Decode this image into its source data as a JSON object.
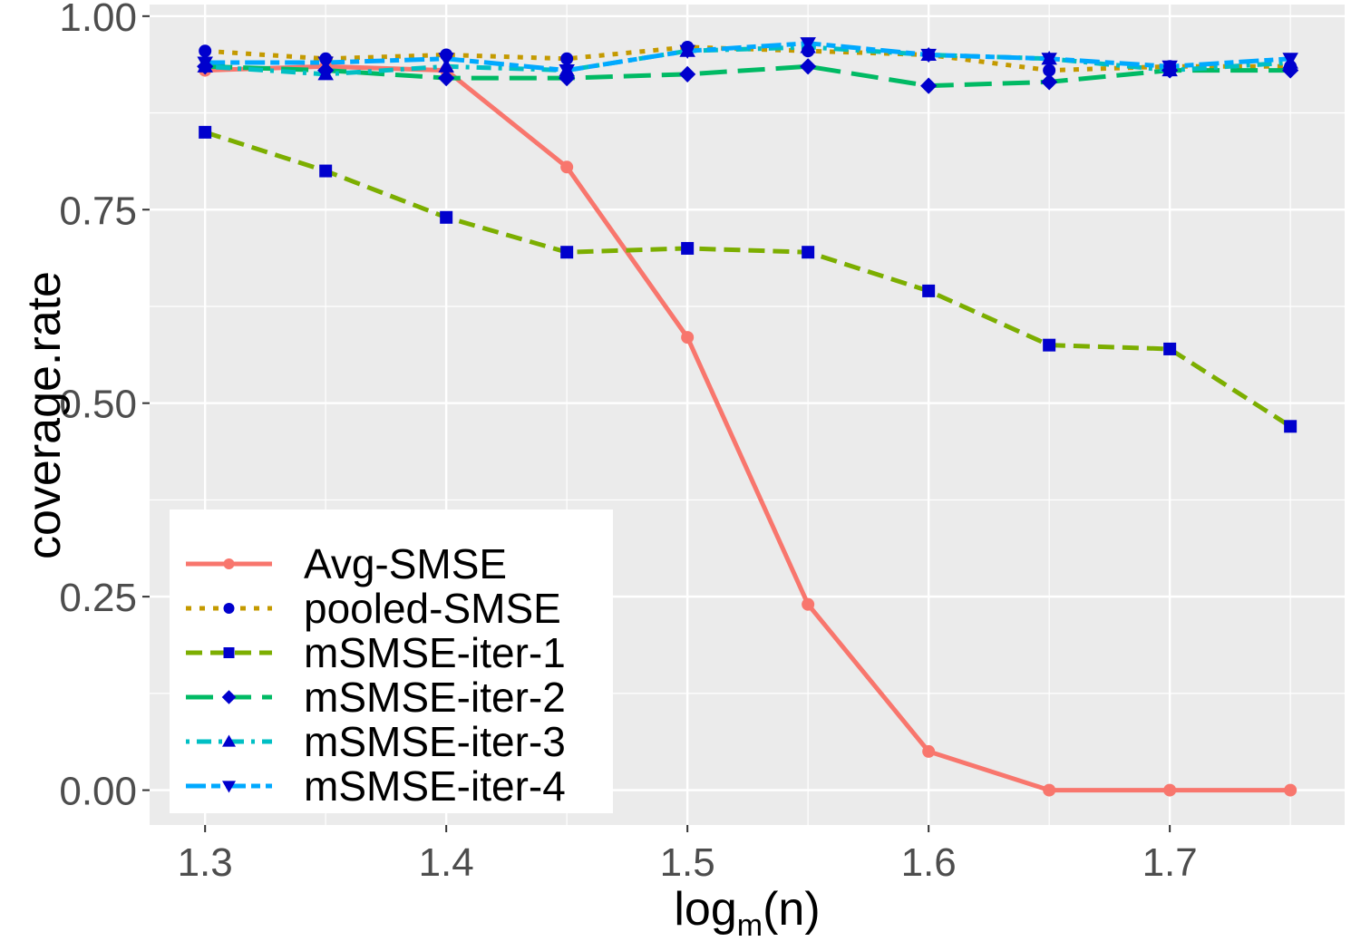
{
  "chart_data": {
    "type": "line",
    "title": "",
    "xlabel_main": "log",
    "xlabel_sub": "m",
    "xlabel_tail": "(n)",
    "ylabel": "coverage.rate",
    "x": [
      1.3,
      1.35,
      1.4,
      1.45,
      1.5,
      1.55,
      1.6,
      1.65,
      1.7,
      1.75
    ],
    "xlim": [
      1.277,
      1.7725
    ],
    "ylim": [
      -0.045,
      1.015
    ],
    "xticks": [
      1.3,
      1.4,
      1.5,
      1.6,
      1.7
    ],
    "xtick_labels": [
      "1.3",
      "1.4",
      "1.5",
      "1.6",
      "1.7"
    ],
    "yticks": [
      0.0,
      0.25,
      0.5,
      0.75,
      1.0
    ],
    "ytick_labels": [
      "0.00",
      "0.25",
      "0.50",
      "0.75",
      "1.00"
    ],
    "grid": true,
    "legend_position": "bottom-left",
    "series": [
      {
        "name": "Avg-SMSE",
        "color": "#F8766D",
        "dash": "solid",
        "marker": "circle",
        "marker_color": "#F8766D",
        "values": [
          0.93,
          0.935,
          0.93,
          0.805,
          0.585,
          0.24,
          0.05,
          0.0,
          0.0,
          0.0
        ]
      },
      {
        "name": "pooled-SMSE",
        "color": "#C49A00",
        "dash": "dotted",
        "marker": "circle",
        "marker_color": "#0000CD",
        "values": [
          0.955,
          0.945,
          0.95,
          0.945,
          0.96,
          0.955,
          0.95,
          0.93,
          0.935,
          0.935
        ]
      },
      {
        "name": "mSMSE-iter-1",
        "color": "#7CAE00",
        "dash": "dashed",
        "marker": "square",
        "marker_color": "#0000CD",
        "values": [
          0.85,
          0.8,
          0.74,
          0.695,
          0.7,
          0.695,
          0.645,
          0.575,
          0.57,
          0.47
        ]
      },
      {
        "name": "mSMSE-iter-2",
        "color": "#00BA64",
        "dash": "longdash",
        "marker": "diamond",
        "marker_color": "#0000CD",
        "values": [
          0.935,
          0.93,
          0.92,
          0.92,
          0.925,
          0.935,
          0.91,
          0.915,
          0.93,
          0.93
        ]
      },
      {
        "name": "mSMSE-iter-3",
        "color": "#00BFC4",
        "dash": "dotdash",
        "marker": "triangle-up",
        "marker_color": "#0000CD",
        "values": [
          0.935,
          0.925,
          0.935,
          0.93,
          0.955,
          0.96,
          0.95,
          0.945,
          0.93,
          0.94
        ]
      },
      {
        "name": "mSMSE-iter-4",
        "color": "#00A9FF",
        "dash": "twodash",
        "marker": "triangle-down",
        "marker_color": "#0000CD",
        "values": [
          0.94,
          0.94,
          0.945,
          0.93,
          0.955,
          0.965,
          0.95,
          0.945,
          0.935,
          0.945
        ]
      }
    ]
  }
}
